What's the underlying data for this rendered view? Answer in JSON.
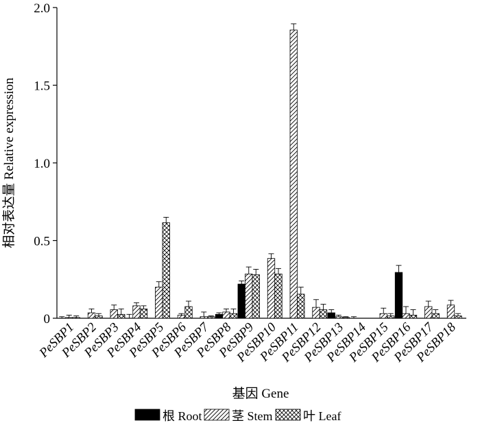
{
  "chart_data": {
    "type": "bar",
    "title": "",
    "xlabel": "基因 Gene",
    "ylabel": "相对表达量 Relative expression",
    "ylim": [
      0,
      2.0
    ],
    "yticks": [
      "0",
      "0.5",
      "1.0",
      "1.5",
      "2.0"
    ],
    "ytick_values": [
      0,
      0.5,
      1.0,
      1.5,
      2.0
    ],
    "grid": false,
    "legend_position": "bottom",
    "categories": [
      "PeSBP1",
      "PeSBP2",
      "PeSBP3",
      "PeSBP4",
      "PeSBP5",
      "PeSBP6",
      "PeSBP7",
      "PeSBP8",
      "PeSBP9",
      "PeSBP10",
      "PeSBP11",
      "PeSBP12",
      "PeSBP13",
      "PeSBP14",
      "PeSBP15",
      "PeSBP16",
      "PeSBP17",
      "PeSBP18"
    ],
    "series": [
      {
        "name": "根 Root",
        "fill": "solid",
        "values": [
          0.0,
          0.0,
          0.0,
          0.0,
          0.0,
          0.0,
          0.0,
          0.025,
          0.22,
          0.0,
          0.0,
          0.0,
          0.035,
          0.0,
          0.0,
          0.295,
          0.0,
          0.0
        ],
        "errors": [
          0.01,
          0.0,
          0.0,
          0.025,
          0.0,
          0.0,
          0.0,
          0.01,
          0.02,
          0.0,
          0.0,
          0.0,
          0.02,
          0.01,
          0.0,
          0.045,
          0.0,
          0.0
        ]
      },
      {
        "name": "茎 Stem",
        "fill": "hatch",
        "values": [
          0.005,
          0.035,
          0.055,
          0.08,
          0.2,
          0.02,
          0.01,
          0.04,
          0.285,
          0.385,
          1.855,
          0.07,
          0.01,
          0.0,
          0.03,
          0.03,
          0.075,
          0.085
        ],
        "errors": [
          0.015,
          0.025,
          0.03,
          0.02,
          0.035,
          0.01,
          0.03,
          0.02,
          0.045,
          0.03,
          0.04,
          0.05,
          0.01,
          0.0,
          0.035,
          0.045,
          0.035,
          0.03
        ]
      },
      {
        "name": "叶 Leaf",
        "fill": "crosshatch",
        "values": [
          0.005,
          0.015,
          0.025,
          0.06,
          0.615,
          0.075,
          0.01,
          0.03,
          0.28,
          0.285,
          0.155,
          0.055,
          0.005,
          0.0,
          0.015,
          0.02,
          0.03,
          0.015
        ],
        "errors": [
          0.01,
          0.015,
          0.035,
          0.02,
          0.035,
          0.035,
          0.005,
          0.03,
          0.035,
          0.035,
          0.045,
          0.035,
          0.005,
          0.0,
          0.015,
          0.035,
          0.025,
          0.015
        ]
      }
    ]
  }
}
